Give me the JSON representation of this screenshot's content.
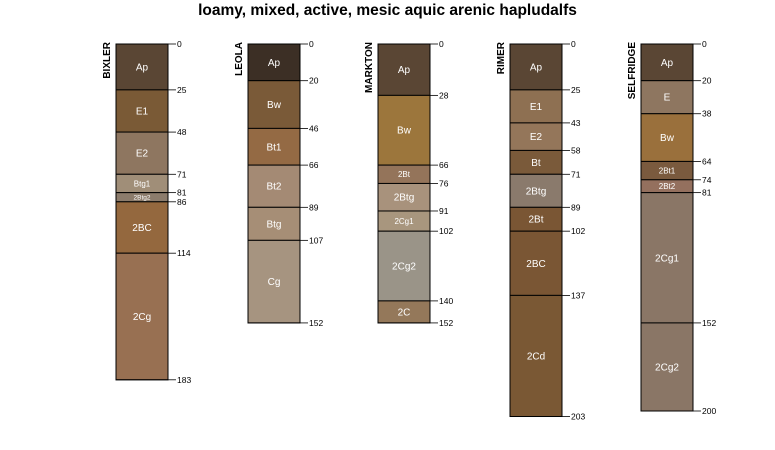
{
  "chart_data": {
    "type": "soil-profile-sketch",
    "title": "loamy, mixed, active, mesic aquic arenic hapludalfs",
    "depth_units": "cm",
    "profiles": [
      {
        "name": "BIXLER",
        "horizons": [
          {
            "name": "Ap",
            "top": 0,
            "bottom": 25,
            "color": "#5a4634"
          },
          {
            "name": "E1",
            "top": 25,
            "bottom": 48,
            "color": "#7a5a36"
          },
          {
            "name": "E2",
            "top": 48,
            "bottom": 71,
            "color": "#8e7660"
          },
          {
            "name": "Btg1",
            "top": 71,
            "bottom": 81,
            "color": "#a08e78"
          },
          {
            "name": "2Btg2",
            "top": 81,
            "bottom": 86,
            "color": "#8c7c6c"
          },
          {
            "name": "2BC",
            "top": 86,
            "bottom": 114,
            "color": "#94683e"
          },
          {
            "name": "2Cg",
            "top": 114,
            "bottom": 183,
            "color": "#987052"
          }
        ],
        "depth_ticks": [
          "0",
          "25",
          "48",
          "71",
          "81",
          "86",
          "114",
          "183"
        ]
      },
      {
        "name": "LEOLA",
        "horizons": [
          {
            "name": "Ap",
            "top": 0,
            "bottom": 20,
            "color": "#3c2f25"
          },
          {
            "name": "Bw",
            "top": 20,
            "bottom": 46,
            "color": "#7a5a38"
          },
          {
            "name": "Bt1",
            "top": 46,
            "bottom": 66,
            "color": "#946a44"
          },
          {
            "name": "Bt2",
            "top": 66,
            "bottom": 89,
            "color": "#a48a74"
          },
          {
            "name": "Btg",
            "top": 89,
            "bottom": 107,
            "color": "#a68e76"
          },
          {
            "name": "Cg",
            "top": 107,
            "bottom": 152,
            "color": "#a69480"
          }
        ],
        "depth_ticks": [
          "0",
          "20",
          "46",
          "66",
          "89",
          "107",
          "152"
        ]
      },
      {
        "name": "MARKTON",
        "horizons": [
          {
            "name": "Ap",
            "top": 0,
            "bottom": 28,
            "color": "#5a4634"
          },
          {
            "name": "Bw",
            "top": 28,
            "bottom": 66,
            "color": "#9c763c"
          },
          {
            "name": "2Bt",
            "top": 66,
            "bottom": 76,
            "color": "#94745a"
          },
          {
            "name": "2Btg",
            "top": 76,
            "bottom": 91,
            "color": "#a8927c"
          },
          {
            "name": "2Cg1",
            "top": 91,
            "bottom": 102,
            "color": "#a8967e"
          },
          {
            "name": "2Cg2",
            "top": 102,
            "bottom": 140,
            "color": "#9a9488"
          },
          {
            "name": "2C",
            "top": 140,
            "bottom": 152,
            "color": "#94785a"
          }
        ],
        "depth_ticks": [
          "0",
          "28",
          "66",
          "76",
          "91",
          "102",
          "140",
          "152"
        ]
      },
      {
        "name": "RIMER",
        "horizons": [
          {
            "name": "Ap",
            "top": 0,
            "bottom": 25,
            "color": "#5a4634"
          },
          {
            "name": "E1",
            "top": 25,
            "bottom": 43,
            "color": "#8e7052"
          },
          {
            "name": "E2",
            "top": 43,
            "bottom": 58,
            "color": "#94765a"
          },
          {
            "name": "Bt",
            "top": 58,
            "bottom": 71,
            "color": "#7a5a3a"
          },
          {
            "name": "2Btg",
            "top": 71,
            "bottom": 89,
            "color": "#8a7a6c"
          },
          {
            "name": "2Bt",
            "top": 89,
            "bottom": 102,
            "color": "#7a5634"
          },
          {
            "name": "2BC",
            "top": 102,
            "bottom": 137,
            "color": "#7a5634"
          },
          {
            "name": "2Cd",
            "top": 137,
            "bottom": 203,
            "color": "#7a5834"
          }
        ],
        "depth_ticks": [
          "0",
          "25",
          "43",
          "58",
          "71",
          "89",
          "102",
          "137",
          "203"
        ]
      },
      {
        "name": "SELFRIDGE",
        "horizons": [
          {
            "name": "Ap",
            "top": 0,
            "bottom": 20,
            "color": "#5a4634"
          },
          {
            "name": "E",
            "top": 20,
            "bottom": 38,
            "color": "#8e7660"
          },
          {
            "name": "Bw",
            "top": 38,
            "bottom": 64,
            "color": "#9a703c"
          },
          {
            "name": "2Bt1",
            "top": 64,
            "bottom": 74,
            "color": "#7a5a3e"
          },
          {
            "name": "2Bt2",
            "top": 74,
            "bottom": 81,
            "color": "#94705e"
          },
          {
            "name": "2Cg1",
            "top": 81,
            "bottom": 152,
            "color": "#8a7666"
          },
          {
            "name": "2Cg2",
            "top": 152,
            "bottom": 200,
            "color": "#8a7666"
          }
        ],
        "depth_ticks": [
          "0",
          "20",
          "38",
          "64",
          "74",
          "81",
          "152",
          "200"
        ]
      }
    ]
  }
}
